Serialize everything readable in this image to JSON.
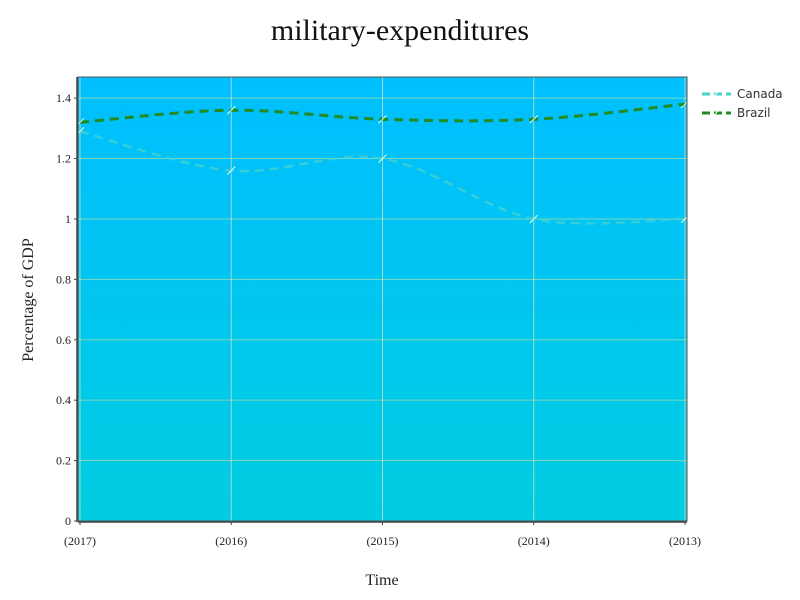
{
  "chart_data": {
    "type": "line",
    "title": "military-expenditures",
    "xlabel": "Time",
    "ylabel": "Percentage of GDP",
    "categories": [
      "(2017)",
      "(2016)",
      "(2015)",
      "(2014)",
      "(2013)"
    ],
    "ylim": [
      0,
      1.47
    ],
    "yticks": [
      0,
      0.2,
      0.4,
      0.6,
      0.8,
      1,
      1.2,
      1.4
    ],
    "grid": true,
    "legend_position": "top-right",
    "background_gradient": [
      "#00bfff",
      "#00cde0"
    ],
    "series": [
      {
        "name": "Canada",
        "values": [
          1.29,
          1.16,
          1.2,
          1.0,
          1.0
        ],
        "color": "#48d1cc",
        "dash": "dashed",
        "marker": "slash-icon"
      },
      {
        "name": "Brazil",
        "values": [
          1.32,
          1.36,
          1.33,
          1.33,
          1.38
        ],
        "color": "#228b22",
        "dash": "dashed",
        "marker": "slash-icon"
      }
    ]
  }
}
